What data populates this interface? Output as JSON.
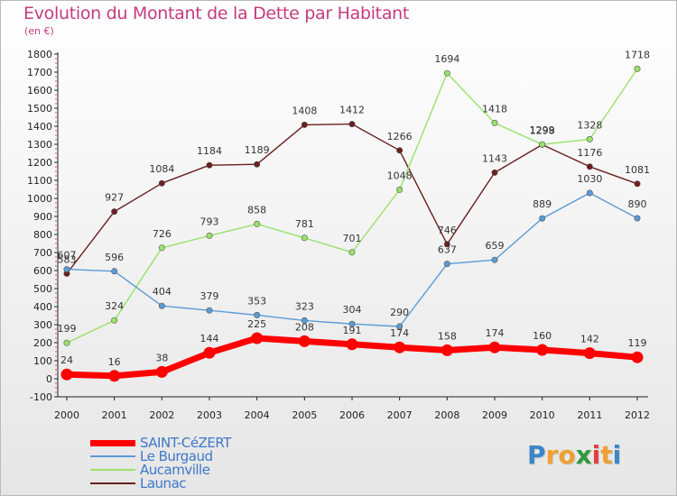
{
  "chart_data": {
    "type": "line",
    "title": "Evolution du Montant de la Dette par Habitant",
    "subtitle": "(en €)",
    "x": [
      "2000",
      "2001",
      "2002",
      "2003",
      "2004",
      "2005",
      "2006",
      "2007",
      "2008",
      "2009",
      "2010",
      "2011",
      "2012"
    ],
    "ylim": [
      -100,
      1800
    ],
    "yticks": [
      -100,
      0,
      100,
      200,
      300,
      400,
      500,
      600,
      700,
      800,
      900,
      1000,
      1100,
      1200,
      1300,
      1400,
      1500,
      1600,
      1700,
      1800
    ],
    "grid": false,
    "legend_position": "bottom-left",
    "series": [
      {
        "name": "SAINT-CéZERT",
        "color": "#ff0000",
        "values": [
          24,
          16,
          38,
          144,
          225,
          208,
          191,
          174,
          158,
          174,
          160,
          142,
          119
        ]
      },
      {
        "name": "Le Burgaud",
        "color": "#5b9bd5",
        "values": [
          607,
          596,
          404,
          379,
          353,
          323,
          304,
          290,
          637,
          659,
          889,
          1030,
          890
        ]
      },
      {
        "name": "Aucamville",
        "color": "#99e26b",
        "values": [
          199,
          324,
          726,
          793,
          858,
          781,
          701,
          1048,
          1694,
          1418,
          1299,
          1328,
          1718
        ]
      },
      {
        "name": "Launac",
        "color": "#6b1f1f",
        "values": [
          583,
          927,
          1084,
          1184,
          1189,
          1408,
          1412,
          1266,
          746,
          1143,
          1298,
          1176,
          1081
        ]
      }
    ]
  },
  "logo": {
    "letters": [
      "P",
      "r",
      "o",
      "x",
      "i",
      "t",
      "i"
    ],
    "colors": [
      "#3a87c8",
      "#f0a030",
      "#f0a030",
      "#2f9a3a",
      "#e04040",
      "#f0a030",
      "#3a87c8"
    ]
  }
}
